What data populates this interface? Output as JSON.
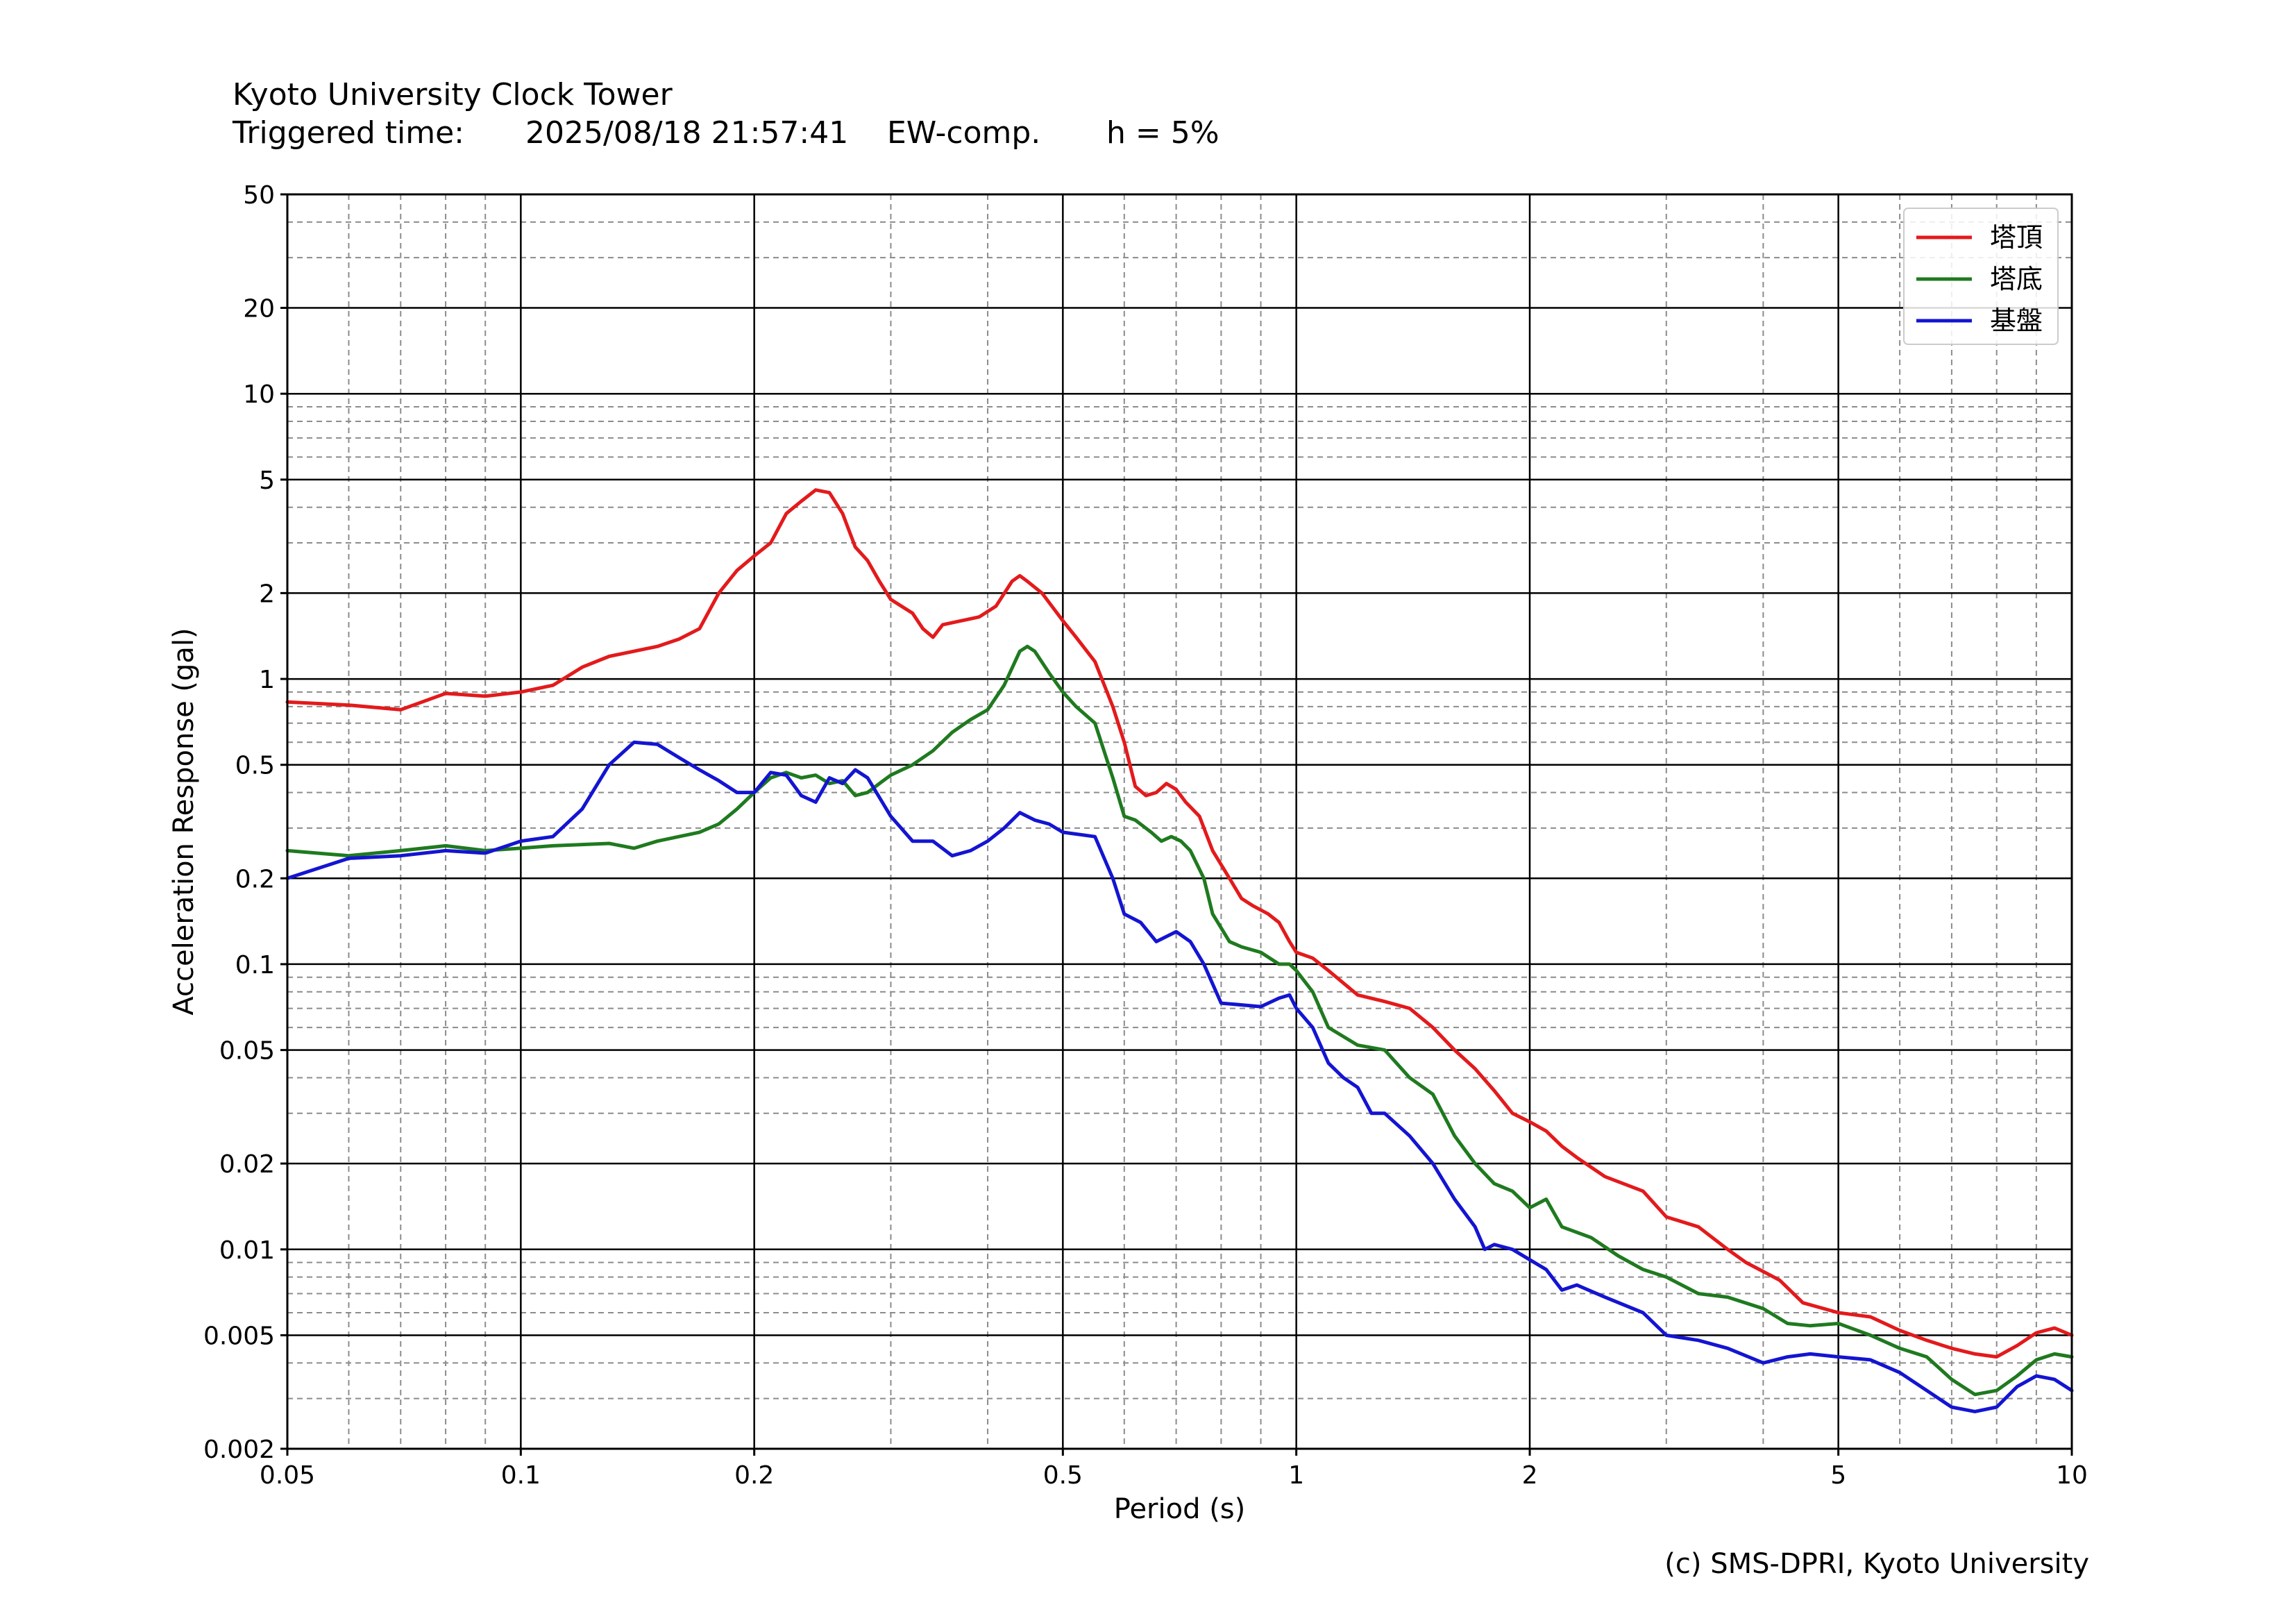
{
  "header": {
    "title": "Kyoto University Clock Tower",
    "triggered_label": "Triggered time:",
    "triggered_time": "2025/08/18 21:57:41",
    "component": "EW-comp.",
    "damping": "h = 5%"
  },
  "footer": {
    "copyright": "(c) SMS-DPRI, Kyoto University"
  },
  "chart_data": {
    "type": "line",
    "xlabel": "Period (s)",
    "ylabel": "Acceleration Response (gal)",
    "xscale": "log",
    "yscale": "log",
    "xlim": [
      0.05,
      10
    ],
    "ylim": [
      0.002,
      50
    ],
    "grid": true,
    "legend_position": "top-right",
    "x_ticks": [
      {
        "value": 0.05,
        "label": "0.05"
      },
      {
        "value": 0.1,
        "label": "0.1"
      },
      {
        "value": 0.2,
        "label": "0.2"
      },
      {
        "value": 0.5,
        "label": "0.5"
      },
      {
        "value": 1,
        "label": "1"
      },
      {
        "value": 2,
        "label": "2"
      },
      {
        "value": 5,
        "label": "5"
      },
      {
        "value": 10,
        "label": "10"
      }
    ],
    "y_ticks": [
      {
        "value": 0.002,
        "label": "0.002"
      },
      {
        "value": 0.005,
        "label": "0.005"
      },
      {
        "value": 0.01,
        "label": "0.01"
      },
      {
        "value": 0.02,
        "label": "0.02"
      },
      {
        "value": 0.05,
        "label": "0.05"
      },
      {
        "value": 0.1,
        "label": "0.1"
      },
      {
        "value": 0.2,
        "label": "0.2"
      },
      {
        "value": 0.5,
        "label": "0.5"
      },
      {
        "value": 1,
        "label": "1"
      },
      {
        "value": 2,
        "label": "2"
      },
      {
        "value": 5,
        "label": "5"
      },
      {
        "value": 10,
        "label": "10"
      },
      {
        "value": 20,
        "label": "20"
      },
      {
        "value": 50,
        "label": "50"
      }
    ],
    "series": [
      {
        "name": "塔頂",
        "color": "#e31a1c",
        "points": [
          [
            0.05,
            0.83
          ],
          [
            0.06,
            0.81
          ],
          [
            0.07,
            0.78
          ],
          [
            0.08,
            0.89
          ],
          [
            0.09,
            0.87
          ],
          [
            0.1,
            0.9
          ],
          [
            0.11,
            0.95
          ],
          [
            0.12,
            1.1
          ],
          [
            0.13,
            1.2
          ],
          [
            0.15,
            1.3
          ],
          [
            0.16,
            1.38
          ],
          [
            0.17,
            1.5
          ],
          [
            0.18,
            2.0
          ],
          [
            0.19,
            2.4
          ],
          [
            0.2,
            2.7
          ],
          [
            0.21,
            3.0
          ],
          [
            0.22,
            3.8
          ],
          [
            0.23,
            4.2
          ],
          [
            0.24,
            4.6
          ],
          [
            0.25,
            4.5
          ],
          [
            0.26,
            3.8
          ],
          [
            0.27,
            2.9
          ],
          [
            0.28,
            2.6
          ],
          [
            0.29,
            2.2
          ],
          [
            0.3,
            1.9
          ],
          [
            0.32,
            1.7
          ],
          [
            0.33,
            1.5
          ],
          [
            0.34,
            1.4
          ],
          [
            0.35,
            1.55
          ],
          [
            0.37,
            1.6
          ],
          [
            0.39,
            1.65
          ],
          [
            0.41,
            1.8
          ],
          [
            0.43,
            2.2
          ],
          [
            0.44,
            2.3
          ],
          [
            0.45,
            2.2
          ],
          [
            0.47,
            2.0
          ],
          [
            0.5,
            1.6
          ],
          [
            0.52,
            1.4
          ],
          [
            0.55,
            1.15
          ],
          [
            0.58,
            0.8
          ],
          [
            0.6,
            0.6
          ],
          [
            0.62,
            0.42
          ],
          [
            0.64,
            0.39
          ],
          [
            0.66,
            0.4
          ],
          [
            0.68,
            0.43
          ],
          [
            0.7,
            0.41
          ],
          [
            0.72,
            0.37
          ],
          [
            0.75,
            0.33
          ],
          [
            0.78,
            0.25
          ],
          [
            0.82,
            0.2
          ],
          [
            0.85,
            0.17
          ],
          [
            0.88,
            0.16
          ],
          [
            0.92,
            0.15
          ],
          [
            0.95,
            0.14
          ],
          [
            0.98,
            0.12
          ],
          [
            1.0,
            0.11
          ],
          [
            1.05,
            0.105
          ],
          [
            1.1,
            0.095
          ],
          [
            1.2,
            0.078
          ],
          [
            1.3,
            0.074
          ],
          [
            1.4,
            0.07
          ],
          [
            1.5,
            0.06
          ],
          [
            1.6,
            0.05
          ],
          [
            1.7,
            0.043
          ],
          [
            1.8,
            0.036
          ],
          [
            1.9,
            0.03
          ],
          [
            2.0,
            0.028
          ],
          [
            2.1,
            0.026
          ],
          [
            2.2,
            0.023
          ],
          [
            2.3,
            0.021
          ],
          [
            2.5,
            0.018
          ],
          [
            2.8,
            0.016
          ],
          [
            3.0,
            0.013
          ],
          [
            3.3,
            0.012
          ],
          [
            3.6,
            0.01
          ],
          [
            3.8,
            0.009
          ],
          [
            4.2,
            0.0078
          ],
          [
            4.5,
            0.0065
          ],
          [
            5.0,
            0.006
          ],
          [
            5.5,
            0.0058
          ],
          [
            6.0,
            0.0052
          ],
          [
            6.5,
            0.0048
          ],
          [
            7.0,
            0.0045
          ],
          [
            7.5,
            0.0043
          ],
          [
            8.0,
            0.0042
          ],
          [
            8.5,
            0.0046
          ],
          [
            9.0,
            0.0051
          ],
          [
            9.5,
            0.0053
          ],
          [
            10.0,
            0.005
          ]
        ]
      },
      {
        "name": "塔底",
        "color": "#1f7a1f",
        "points": [
          [
            0.05,
            0.25
          ],
          [
            0.06,
            0.24
          ],
          [
            0.07,
            0.25
          ],
          [
            0.08,
            0.26
          ],
          [
            0.09,
            0.25
          ],
          [
            0.1,
            0.255
          ],
          [
            0.11,
            0.26
          ],
          [
            0.13,
            0.265
          ],
          [
            0.14,
            0.255
          ],
          [
            0.15,
            0.27
          ],
          [
            0.17,
            0.29
          ],
          [
            0.18,
            0.31
          ],
          [
            0.19,
            0.35
          ],
          [
            0.2,
            0.4
          ],
          [
            0.21,
            0.45
          ],
          [
            0.22,
            0.47
          ],
          [
            0.23,
            0.45
          ],
          [
            0.24,
            0.46
          ],
          [
            0.25,
            0.43
          ],
          [
            0.26,
            0.44
          ],
          [
            0.27,
            0.39
          ],
          [
            0.28,
            0.4
          ],
          [
            0.29,
            0.43
          ],
          [
            0.3,
            0.46
          ],
          [
            0.32,
            0.5
          ],
          [
            0.34,
            0.56
          ],
          [
            0.36,
            0.65
          ],
          [
            0.38,
            0.72
          ],
          [
            0.4,
            0.78
          ],
          [
            0.42,
            0.95
          ],
          [
            0.44,
            1.25
          ],
          [
            0.45,
            1.3
          ],
          [
            0.46,
            1.25
          ],
          [
            0.48,
            1.05
          ],
          [
            0.5,
            0.9
          ],
          [
            0.52,
            0.8
          ],
          [
            0.55,
            0.7
          ],
          [
            0.58,
            0.45
          ],
          [
            0.6,
            0.33
          ],
          [
            0.62,
            0.32
          ],
          [
            0.65,
            0.29
          ],
          [
            0.67,
            0.27
          ],
          [
            0.69,
            0.28
          ],
          [
            0.71,
            0.27
          ],
          [
            0.73,
            0.25
          ],
          [
            0.76,
            0.2
          ],
          [
            0.78,
            0.15
          ],
          [
            0.82,
            0.12
          ],
          [
            0.85,
            0.115
          ],
          [
            0.9,
            0.11
          ],
          [
            0.95,
            0.1
          ],
          [
            0.98,
            0.1
          ],
          [
            1.0,
            0.095
          ],
          [
            1.05,
            0.08
          ],
          [
            1.1,
            0.06
          ],
          [
            1.2,
            0.052
          ],
          [
            1.3,
            0.05
          ],
          [
            1.4,
            0.04
          ],
          [
            1.5,
            0.035
          ],
          [
            1.6,
            0.025
          ],
          [
            1.7,
            0.02
          ],
          [
            1.8,
            0.017
          ],
          [
            1.9,
            0.016
          ],
          [
            2.0,
            0.014
          ],
          [
            2.1,
            0.015
          ],
          [
            2.2,
            0.012
          ],
          [
            2.4,
            0.011
          ],
          [
            2.6,
            0.0095
          ],
          [
            2.8,
            0.0085
          ],
          [
            3.0,
            0.008
          ],
          [
            3.3,
            0.007
          ],
          [
            3.6,
            0.0068
          ],
          [
            4.0,
            0.0062
          ],
          [
            4.3,
            0.0055
          ],
          [
            4.6,
            0.0054
          ],
          [
            5.0,
            0.0055
          ],
          [
            5.5,
            0.005
          ],
          [
            6.0,
            0.0045
          ],
          [
            6.5,
            0.0042
          ],
          [
            7.0,
            0.0035
          ],
          [
            7.5,
            0.0031
          ],
          [
            8.0,
            0.0032
          ],
          [
            8.5,
            0.0036
          ],
          [
            9.0,
            0.0041
          ],
          [
            9.5,
            0.0043
          ],
          [
            10.0,
            0.0042
          ]
        ]
      },
      {
        "name": "基盤",
        "color": "#1414d2",
        "points": [
          [
            0.05,
            0.2
          ],
          [
            0.06,
            0.235
          ],
          [
            0.07,
            0.24
          ],
          [
            0.08,
            0.25
          ],
          [
            0.09,
            0.245
          ],
          [
            0.1,
            0.27
          ],
          [
            0.11,
            0.28
          ],
          [
            0.12,
            0.35
          ],
          [
            0.13,
            0.5
          ],
          [
            0.14,
            0.6
          ],
          [
            0.15,
            0.59
          ],
          [
            0.16,
            0.53
          ],
          [
            0.17,
            0.48
          ],
          [
            0.18,
            0.44
          ],
          [
            0.19,
            0.4
          ],
          [
            0.2,
            0.4
          ],
          [
            0.21,
            0.47
          ],
          [
            0.22,
            0.46
          ],
          [
            0.23,
            0.39
          ],
          [
            0.24,
            0.37
          ],
          [
            0.25,
            0.45
          ],
          [
            0.26,
            0.43
          ],
          [
            0.27,
            0.48
          ],
          [
            0.28,
            0.45
          ],
          [
            0.3,
            0.33
          ],
          [
            0.32,
            0.27
          ],
          [
            0.34,
            0.27
          ],
          [
            0.36,
            0.24
          ],
          [
            0.38,
            0.25
          ],
          [
            0.4,
            0.27
          ],
          [
            0.42,
            0.3
          ],
          [
            0.44,
            0.34
          ],
          [
            0.46,
            0.32
          ],
          [
            0.48,
            0.31
          ],
          [
            0.5,
            0.29
          ],
          [
            0.55,
            0.28
          ],
          [
            0.58,
            0.2
          ],
          [
            0.6,
            0.15
          ],
          [
            0.63,
            0.14
          ],
          [
            0.66,
            0.12
          ],
          [
            0.7,
            0.13
          ],
          [
            0.73,
            0.12
          ],
          [
            0.76,
            0.1
          ],
          [
            0.8,
            0.073
          ],
          [
            0.85,
            0.072
          ],
          [
            0.9,
            0.071
          ],
          [
            0.95,
            0.076
          ],
          [
            0.98,
            0.078
          ],
          [
            1.0,
            0.07
          ],
          [
            1.05,
            0.06
          ],
          [
            1.1,
            0.045
          ],
          [
            1.15,
            0.04
          ],
          [
            1.2,
            0.037
          ],
          [
            1.25,
            0.03
          ],
          [
            1.3,
            0.03
          ],
          [
            1.4,
            0.025
          ],
          [
            1.5,
            0.02
          ],
          [
            1.6,
            0.015
          ],
          [
            1.7,
            0.012
          ],
          [
            1.75,
            0.01
          ],
          [
            1.8,
            0.0104
          ],
          [
            1.9,
            0.01
          ],
          [
            2.0,
            0.0092
          ],
          [
            2.1,
            0.0085
          ],
          [
            2.2,
            0.0072
          ],
          [
            2.3,
            0.0075
          ],
          [
            2.5,
            0.0068
          ],
          [
            2.8,
            0.006
          ],
          [
            3.0,
            0.005
          ],
          [
            3.3,
            0.0048
          ],
          [
            3.6,
            0.0045
          ],
          [
            4.0,
            0.004
          ],
          [
            4.3,
            0.0042
          ],
          [
            4.6,
            0.0043
          ],
          [
            5.0,
            0.0042
          ],
          [
            5.5,
            0.0041
          ],
          [
            6.0,
            0.0037
          ],
          [
            6.5,
            0.0032
          ],
          [
            7.0,
            0.0028
          ],
          [
            7.5,
            0.0027
          ],
          [
            8.0,
            0.0028
          ],
          [
            8.5,
            0.0033
          ],
          [
            9.0,
            0.0036
          ],
          [
            9.5,
            0.0035
          ],
          [
            10.0,
            0.0032
          ]
        ]
      }
    ]
  }
}
